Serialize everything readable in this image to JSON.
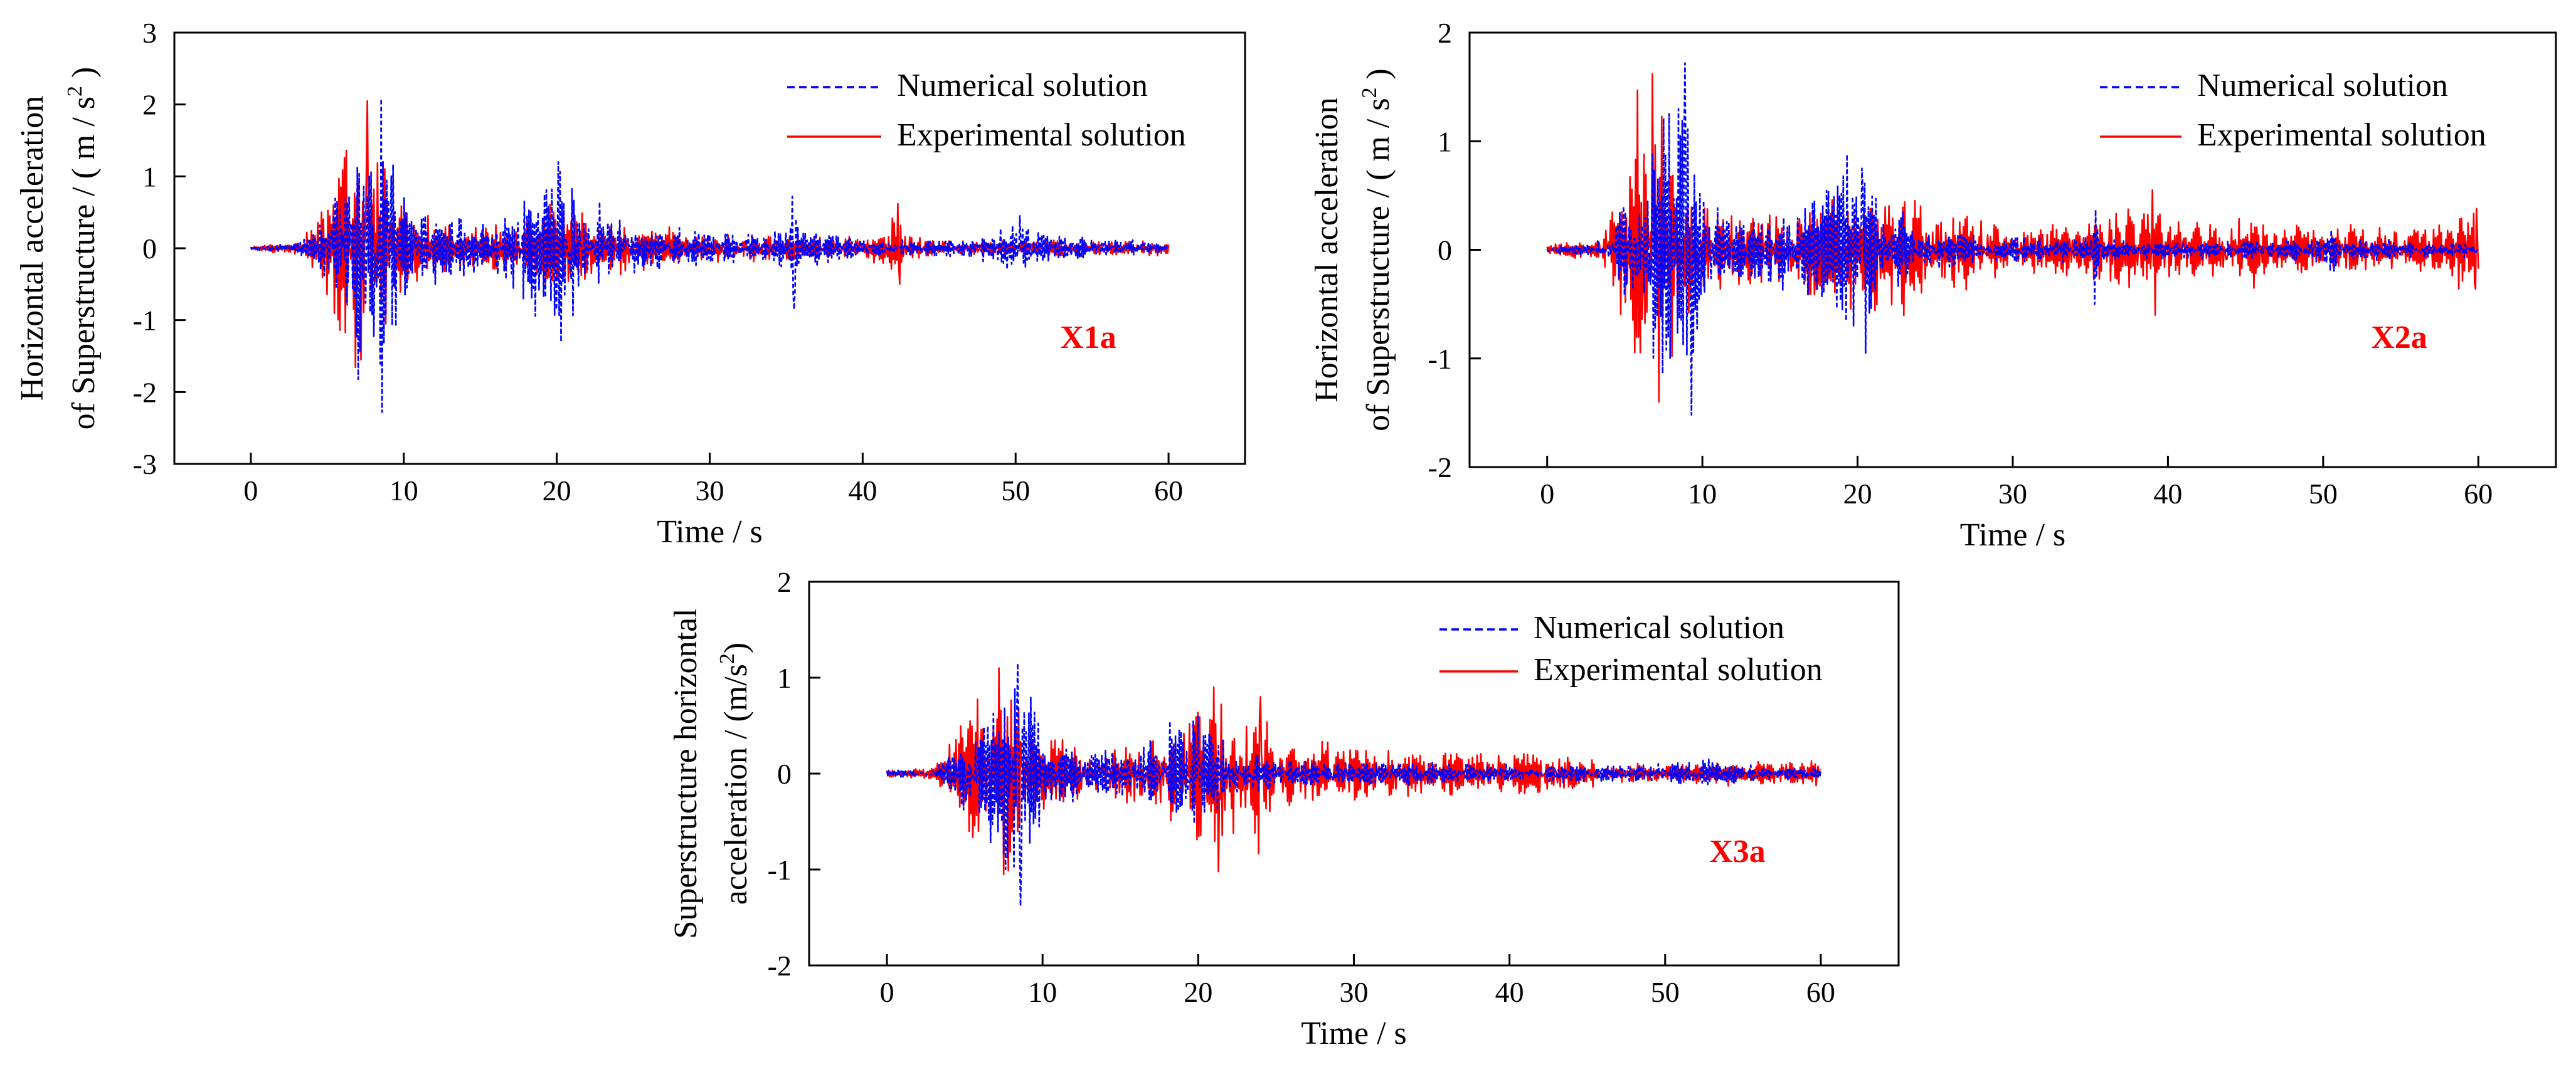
{
  "chart_data": [
    {
      "type": "line",
      "panel_label": "X1a",
      "xlabel": "Time / s",
      "ylabel_lines": [
        "Horizontal acceleration",
        "of Superstructure  / ( m / s",
        "2",
        " )"
      ],
      "xlim": [
        -5,
        65
      ],
      "ylim": [
        -3,
        3
      ],
      "xticks": [
        0,
        10,
        20,
        30,
        40,
        50,
        60
      ],
      "yticks": [
        -3,
        -2,
        -1,
        0,
        1,
        2,
        3
      ],
      "legend_position": "top-right",
      "series": [
        {
          "name": "Numerical solution",
          "color": "#0000ff",
          "style": "dashed",
          "envelope": [
            [
              0,
              0.03
            ],
            [
              3,
              0.06
            ],
            [
              4,
              0.2
            ],
            [
              5,
              0.5
            ],
            [
              6,
              1.0
            ],
            [
              7,
              1.6
            ],
            [
              8,
              2.0
            ],
            [
              8.5,
              2.1
            ],
            [
              9,
              2.0
            ],
            [
              10,
              0.8
            ],
            [
              11,
              0.5
            ],
            [
              13,
              0.4
            ],
            [
              15,
              0.35
            ],
            [
              17,
              0.5
            ],
            [
              18,
              0.9
            ],
            [
              19,
              1.1
            ],
            [
              20,
              1.2
            ],
            [
              21,
              1.0
            ],
            [
              22,
              0.6
            ],
            [
              24,
              0.4
            ],
            [
              26,
              0.3
            ],
            [
              28,
              0.25
            ],
            [
              30,
              0.25
            ],
            [
              33,
              0.2
            ],
            [
              35,
              0.3
            ],
            [
              35.5,
              0.75
            ],
            [
              36,
              0.25
            ],
            [
              38,
              0.2
            ],
            [
              40,
              0.15
            ],
            [
              42,
              0.1
            ],
            [
              45,
              0.1
            ],
            [
              48,
              0.2
            ],
            [
              50,
              0.45
            ],
            [
              52,
              0.2
            ],
            [
              55,
              0.15
            ],
            [
              58,
              0.1
            ],
            [
              60,
              0.08
            ]
          ],
          "peaks": [
            {
              "t": 8.5,
              "a": 2.08
            },
            {
              "t": 8.6,
              "a": -2.28
            },
            {
              "t": 20.1,
              "a": 1.2
            },
            {
              "t": 20.3,
              "a": -1.3
            },
            {
              "t": 35.4,
              "a": 0.72
            },
            {
              "t": 35.5,
              "a": -0.85
            },
            {
              "t": 50.3,
              "a": 0.45
            }
          ]
        },
        {
          "name": "Experimental solution",
          "color": "#ff0000",
          "style": "solid",
          "envelope": [
            [
              0,
              0.03
            ],
            [
              3,
              0.08
            ],
            [
              4,
              0.35
            ],
            [
              5,
              0.8
            ],
            [
              6,
              1.3
            ],
            [
              7,
              1.8
            ],
            [
              7.5,
              2.0
            ],
            [
              8,
              1.9
            ],
            [
              9,
              1.2
            ],
            [
              10,
              0.6
            ],
            [
              12,
              0.35
            ],
            [
              15,
              0.3
            ],
            [
              18,
              0.45
            ],
            [
              20,
              0.55
            ],
            [
              22,
              0.5
            ],
            [
              24,
              0.4
            ],
            [
              26,
              0.3
            ],
            [
              28,
              0.22
            ],
            [
              30,
              0.2
            ],
            [
              35,
              0.18
            ],
            [
              40,
              0.12
            ],
            [
              42,
              0.4
            ],
            [
              42.4,
              0.65
            ],
            [
              43,
              0.2
            ],
            [
              45,
              0.1
            ],
            [
              50,
              0.12
            ],
            [
              55,
              0.1
            ],
            [
              60,
              0.1
            ]
          ],
          "peaks": [
            {
              "t": 7.6,
              "a": 2.05
            },
            {
              "t": 7.2,
              "a": -1.55
            },
            {
              "t": 42.3,
              "a": 0.62
            },
            {
              "t": 42.4,
              "a": -0.5
            }
          ]
        }
      ]
    },
    {
      "type": "line",
      "panel_label": "X2a",
      "xlabel": "Time / s",
      "ylabel_lines": [
        "Horizontal acceleration",
        "of Superstructure  / ( m / s",
        "2",
        " )"
      ],
      "xlim": [
        -5,
        65
      ],
      "ylim": [
        -2,
        2
      ],
      "xticks": [
        0,
        10,
        20,
        30,
        40,
        50,
        60
      ],
      "yticks": [
        -2,
        -1,
        0,
        1,
        2
      ],
      "legend_position": "top-right",
      "series": [
        {
          "name": "Numerical solution",
          "color": "#0000ff",
          "style": "dashed",
          "envelope": [
            [
              0,
              0.03
            ],
            [
              3,
              0.05
            ],
            [
              4,
              0.2
            ],
            [
              5,
              0.5
            ],
            [
              6,
              0.9
            ],
            [
              7,
              1.2
            ],
            [
              8,
              1.5
            ],
            [
              9,
              1.6
            ],
            [
              9.5,
              1.2
            ],
            [
              10,
              0.5
            ],
            [
              12,
              0.3
            ],
            [
              15,
              0.3
            ],
            [
              17,
              0.45
            ],
            [
              19,
              0.7
            ],
            [
              20,
              0.75
            ],
            [
              21,
              0.65
            ],
            [
              22,
              0.4
            ],
            [
              24,
              0.2
            ],
            [
              27,
              0.15
            ],
            [
              30,
              0.12
            ],
            [
              35,
              0.1
            ],
            [
              35.3,
              0.4
            ],
            [
              36,
              0.1
            ],
            [
              40,
              0.08
            ],
            [
              45,
              0.08
            ],
            [
              48,
              0.1
            ],
            [
              50,
              0.15
            ],
            [
              50.5,
              0.3
            ],
            [
              51,
              0.1
            ],
            [
              55,
              0.08
            ],
            [
              60,
              0.06
            ]
          ],
          "peaks": [
            {
              "t": 8.9,
              "a": 1.72
            },
            {
              "t": 9.3,
              "a": -1.52
            },
            {
              "t": 20.3,
              "a": 0.75
            },
            {
              "t": 20.5,
              "a": -0.95
            },
            {
              "t": 35.3,
              "a": -0.5
            }
          ]
        },
        {
          "name": "Experimental solution",
          "color": "#ff0000",
          "style": "solid",
          "envelope": [
            [
              0,
              0.05
            ],
            [
              3,
              0.08
            ],
            [
              4,
              0.4
            ],
            [
              5,
              0.9
            ],
            [
              6,
              1.3
            ],
            [
              6.8,
              1.6
            ],
            [
              7.5,
              1.4
            ],
            [
              8,
              1.2
            ],
            [
              9,
              0.8
            ],
            [
              10,
              0.5
            ],
            [
              12,
              0.4
            ],
            [
              15,
              0.35
            ],
            [
              17,
              0.45
            ],
            [
              20,
              0.55
            ],
            [
              21,
              0.65
            ],
            [
              22,
              0.55
            ],
            [
              24,
              0.45
            ],
            [
              26,
              0.35
            ],
            [
              28,
              0.3
            ],
            [
              30,
              0.25
            ],
            [
              33,
              0.25
            ],
            [
              36,
              0.3
            ],
            [
              39,
              0.5
            ],
            [
              40,
              0.3
            ],
            [
              42,
              0.25
            ],
            [
              45,
              0.3
            ],
            [
              48,
              0.25
            ],
            [
              50,
              0.2
            ],
            [
              52,
              0.25
            ],
            [
              55,
              0.18
            ],
            [
              58,
              0.25
            ],
            [
              60,
              0.38
            ]
          ],
          "peaks": [
            {
              "t": 6.8,
              "a": 1.62
            },
            {
              "t": 7.2,
              "a": -1.4
            },
            {
              "t": 39.0,
              "a": 0.55
            },
            {
              "t": 39.2,
              "a": -0.6
            },
            {
              "t": 59.9,
              "a": 0.38
            },
            {
              "t": 59.8,
              "a": -0.36
            }
          ]
        }
      ]
    },
    {
      "type": "line",
      "panel_label": "X3a",
      "xlabel": "Time / s",
      "ylabel_lines": [
        "Superstructure horizontal",
        "acceleration / (m/s",
        "2",
        ")"
      ],
      "xlim": [
        -5,
        65
      ],
      "ylim": [
        -2,
        2
      ],
      "xticks": [
        0,
        10,
        20,
        30,
        40,
        50,
        60
      ],
      "yticks": [
        -2,
        -1,
        0,
        1,
        2
      ],
      "legend_position": "top-right",
      "series": [
        {
          "name": "Numerical solution",
          "color": "#0000ff",
          "style": "dashed",
          "envelope": [
            [
              0,
              0.03
            ],
            [
              3,
              0.05
            ],
            [
              4,
              0.2
            ],
            [
              5,
              0.45
            ],
            [
              6,
              0.7
            ],
            [
              7,
              0.9
            ],
            [
              8,
              1.1
            ],
            [
              8.5,
              1.15
            ],
            [
              9,
              1.0
            ],
            [
              10,
              0.5
            ],
            [
              12,
              0.3
            ],
            [
              15,
              0.3
            ],
            [
              17,
              0.4
            ],
            [
              19,
              0.55
            ],
            [
              20,
              0.6
            ],
            [
              21,
              0.5
            ],
            [
              22,
              0.3
            ],
            [
              25,
              0.15
            ],
            [
              30,
              0.12
            ],
            [
              35,
              0.12
            ],
            [
              40,
              0.1
            ],
            [
              45,
              0.08
            ],
            [
              50,
              0.1
            ],
            [
              52,
              0.15
            ],
            [
              55,
              0.08
            ],
            [
              60,
              0.06
            ]
          ],
          "peaks": [
            {
              "t": 8.4,
              "a": 1.15
            },
            {
              "t": 8.6,
              "a": -1.38
            },
            {
              "t": 20.0,
              "a": 0.6
            }
          ]
        },
        {
          "name": "Experimental solution",
          "color": "#ff0000",
          "style": "solid",
          "envelope": [
            [
              0,
              0.04
            ],
            [
              3,
              0.06
            ],
            [
              4,
              0.35
            ],
            [
              5,
              0.6
            ],
            [
              6,
              0.85
            ],
            [
              7,
              1.05
            ],
            [
              8,
              0.9
            ],
            [
              9,
              0.6
            ],
            [
              10,
              0.4
            ],
            [
              12,
              0.35
            ],
            [
              15,
              0.3
            ],
            [
              17,
              0.45
            ],
            [
              19,
              0.6
            ],
            [
              21,
              0.85
            ],
            [
              22,
              0.75
            ],
            [
              24,
              0.8
            ],
            [
              25,
              0.4
            ],
            [
              27,
              0.3
            ],
            [
              30,
              0.28
            ],
            [
              33,
              0.25
            ],
            [
              36,
              0.22
            ],
            [
              40,
              0.25
            ],
            [
              43,
              0.2
            ],
            [
              45,
              0.15
            ],
            [
              48,
              0.12
            ],
            [
              50,
              0.1
            ],
            [
              52,
              0.12
            ],
            [
              55,
              0.1
            ],
            [
              58,
              0.12
            ],
            [
              60,
              0.22
            ]
          ],
          "peaks": [
            {
              "t": 7.2,
              "a": 1.1
            },
            {
              "t": 7.5,
              "a": -1.05
            },
            {
              "t": 21.0,
              "a": 0.9
            },
            {
              "t": 21.3,
              "a": -1.02
            },
            {
              "t": 24.0,
              "a": 0.8
            }
          ]
        }
      ]
    }
  ]
}
